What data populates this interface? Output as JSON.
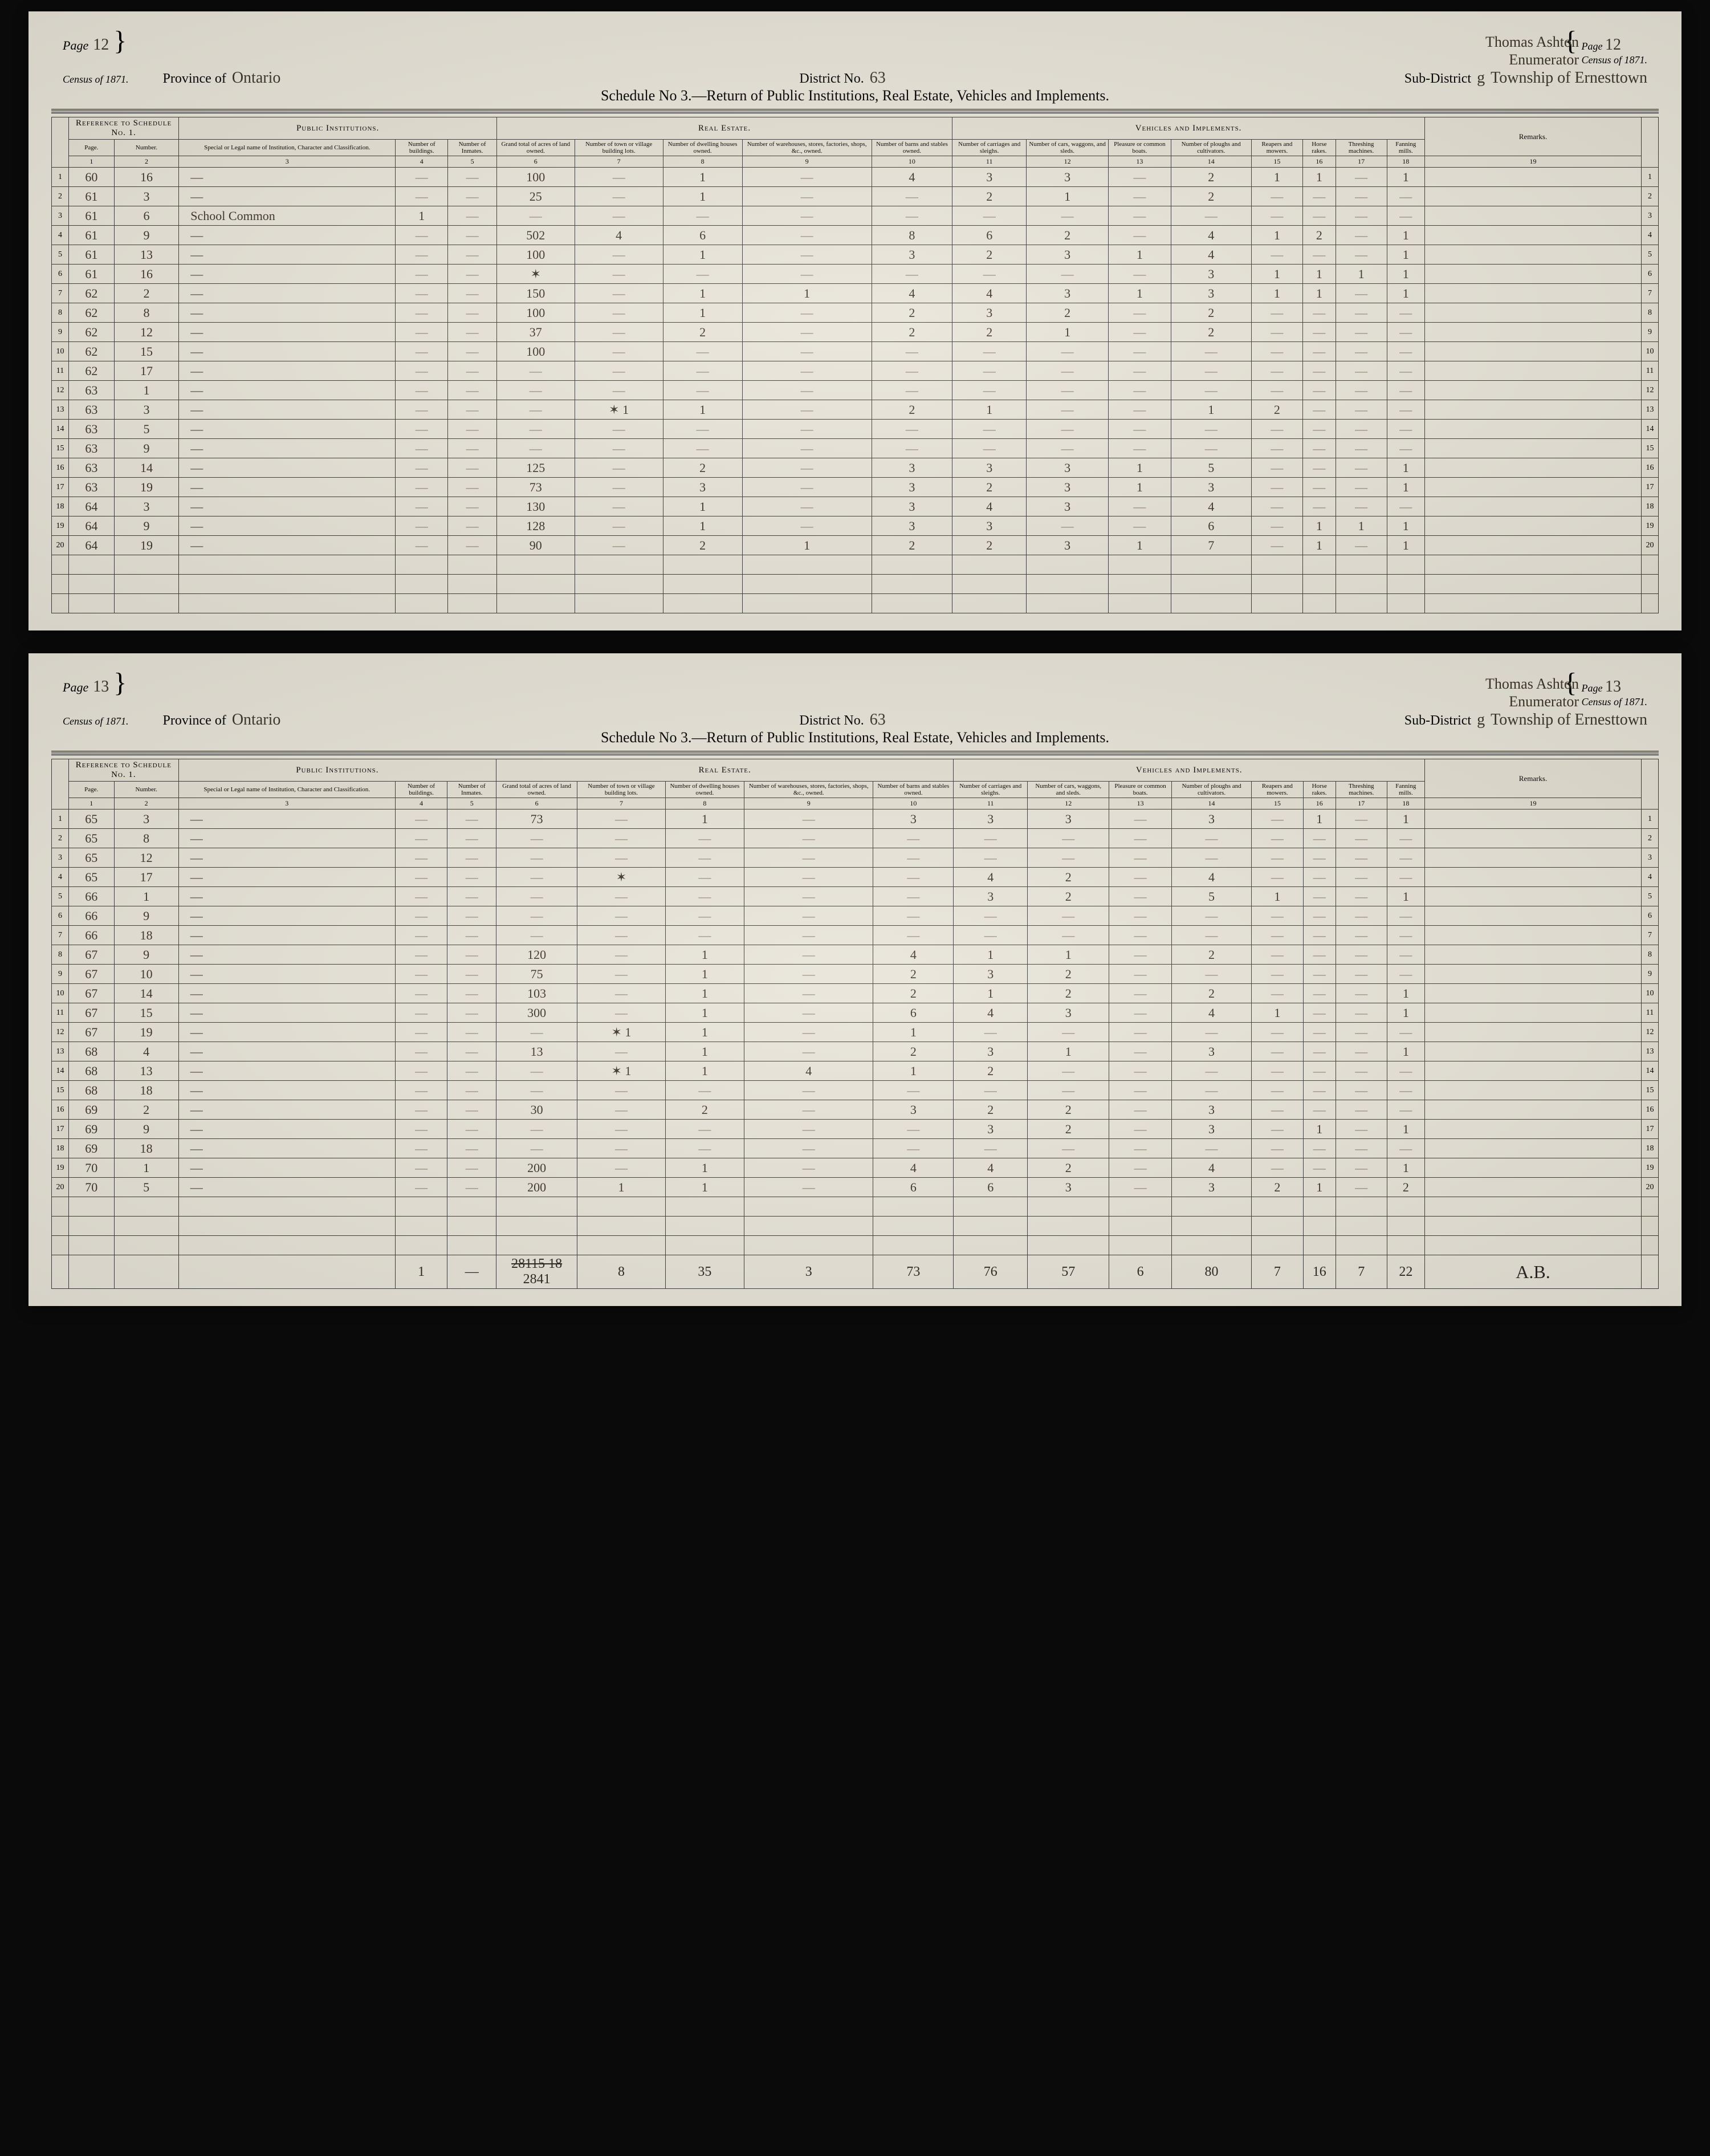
{
  "form": {
    "province_label": "Province of",
    "district_label": "District No.",
    "subdistrict_label": "Sub-District",
    "census_label": "Census of 1871.",
    "page_label": "Page",
    "schedule_title": "Schedule No 3.—Return of Public Institutions, Real Estate, Vehicles and Implements.",
    "enumerator_label": "Enumerator",
    "sections": {
      "ref": "Reference to Schedule No. 1.",
      "pub": "Public Institutions.",
      "real": "Real Estate.",
      "veh": "Vehicles and Implements.",
      "rem": "Remarks."
    },
    "columns": {
      "c1": "Page.",
      "c2": "Number.",
      "c3": "Special or Legal name of Institution, Character and Classification.",
      "c4": "Number of buildings.",
      "c5": "Number of Inmates.",
      "c6": "Grand total of acres of land owned.",
      "c7": "Number of town or village building lots.",
      "c8": "Number of dwelling houses owned.",
      "c9": "Number of warehouses, stores, factories, shops, &c., owned.",
      "c10": "Number of barns and stables owned.",
      "c11": "Number of carriages and sleighs.",
      "c12": "Number of cars, waggons, and sleds.",
      "c13": "Pleasure or common boats.",
      "c14": "Number of ploughs and cultivators.",
      "c15": "Reapers and mowers.",
      "c16": "Horse rakes.",
      "c17": "Threshing machines.",
      "c18": "Fanning mills.",
      "c19": "19"
    }
  },
  "pages": [
    {
      "page_num": "12",
      "province": "Ontario",
      "district": "63",
      "subdistrict_letter": "g",
      "subdistrict_name": "Township of Ernesttown",
      "enumerator": "Thomas Ashton",
      "rows": [
        {
          "n": 1,
          "p": "60",
          "num": "16",
          "inst": "—",
          "c6": "100",
          "c8": "1",
          "c10": "4",
          "c11": "3",
          "c12": "3",
          "c14": "2",
          "c15": "1",
          "c16": "1",
          "c18": "1"
        },
        {
          "n": 2,
          "p": "61",
          "num": "3",
          "inst": "—",
          "c6": "25",
          "c8": "1",
          "c11": "2",
          "c12": "1",
          "c14": "2"
        },
        {
          "n": 3,
          "p": "61",
          "num": "6",
          "inst": "School Common",
          "c4": "1"
        },
        {
          "n": 4,
          "p": "61",
          "num": "9",
          "inst": "—",
          "c6": "502",
          "c7": "4",
          "c8": "6",
          "c10": "8",
          "c11": "6",
          "c12": "2",
          "c14": "4",
          "c15": "1",
          "c16": "2",
          "c18": "1"
        },
        {
          "n": 5,
          "p": "61",
          "num": "13",
          "inst": "—",
          "c6": "100",
          "c8": "1",
          "c10": "3",
          "c11": "2",
          "c12": "3",
          "c13": "1",
          "c14": "4",
          "c18": "1"
        },
        {
          "n": 6,
          "p": "61",
          "num": "16",
          "inst": "—",
          "c6": "✶",
          "c14": "3",
          "c15": "1",
          "c16": "1",
          "c17": "1",
          "c18": "1"
        },
        {
          "n": 7,
          "p": "62",
          "num": "2",
          "inst": "—",
          "c6": "150",
          "c8": "1",
          "c9": "1",
          "c10": "4",
          "c11": "4",
          "c12": "3",
          "c13": "1",
          "c14": "3",
          "c15": "1",
          "c16": "1",
          "c18": "1"
        },
        {
          "n": 8,
          "p": "62",
          "num": "8",
          "inst": "—",
          "c6": "100",
          "c8": "1",
          "c10": "2",
          "c11": "3",
          "c12": "2",
          "c14": "2"
        },
        {
          "n": 9,
          "p": "62",
          "num": "12",
          "inst": "—",
          "c6": "37",
          "c8": "2",
          "c10": "2",
          "c11": "2",
          "c12": "1",
          "c14": "2"
        },
        {
          "n": 10,
          "p": "62",
          "num": "15",
          "inst": "—",
          "c6": "100"
        },
        {
          "n": 11,
          "p": "62",
          "num": "17",
          "inst": "—"
        },
        {
          "n": 12,
          "p": "63",
          "num": "1",
          "inst": "—"
        },
        {
          "n": 13,
          "p": "63",
          "num": "3",
          "inst": "—",
          "c7": "✶ 1",
          "c8": "1",
          "c10": "2",
          "c11": "1",
          "c14": "1",
          "c15": "2"
        },
        {
          "n": 14,
          "p": "63",
          "num": "5",
          "inst": "—"
        },
        {
          "n": 15,
          "p": "63",
          "num": "9",
          "inst": "—"
        },
        {
          "n": 16,
          "p": "63",
          "num": "14",
          "inst": "—",
          "c6": "125",
          "c8": "2",
          "c10": "3",
          "c11": "3",
          "c12": "3",
          "c13": "1",
          "c14": "5",
          "c18": "1"
        },
        {
          "n": 17,
          "p": "63",
          "num": "19",
          "inst": "—",
          "c6": "73",
          "c8": "3",
          "c10": "3",
          "c11": "2",
          "c12": "3",
          "c13": "1",
          "c14": "3",
          "c18": "1"
        },
        {
          "n": 18,
          "p": "64",
          "num": "3",
          "inst": "—",
          "c6": "130",
          "c8": "1",
          "c10": "3",
          "c11": "4",
          "c12": "3",
          "c14": "4"
        },
        {
          "n": 19,
          "p": "64",
          "num": "9",
          "inst": "—",
          "c6": "128",
          "c8": "1",
          "c10": "3",
          "c11": "3",
          "c14": "6",
          "c16": "1",
          "c17": "1",
          "c18": "1"
        },
        {
          "n": 20,
          "p": "64",
          "num": "19",
          "inst": "—",
          "c6": "90",
          "c8": "2",
          "c9": "1",
          "c10": "2",
          "c11": "2",
          "c12": "3",
          "c13": "1",
          "c14": "7",
          "c16": "1",
          "c18": "1"
        }
      ]
    },
    {
      "page_num": "13",
      "province": "Ontario",
      "district": "63",
      "subdistrict_letter": "g",
      "subdistrict_name": "Township of Ernesttown",
      "enumerator": "Thomas Ashton",
      "rows": [
        {
          "n": 1,
          "p": "65",
          "num": "3",
          "inst": "—",
          "c6": "73",
          "c8": "1",
          "c10": "3",
          "c11": "3",
          "c12": "3",
          "c14": "3",
          "c16": "1",
          "c18": "1"
        },
        {
          "n": 2,
          "p": "65",
          "num": "8",
          "inst": "—"
        },
        {
          "n": 3,
          "p": "65",
          "num": "12",
          "inst": "—"
        },
        {
          "n": 4,
          "p": "65",
          "num": "17",
          "inst": "—",
          "c7": "✶",
          "c11": "4",
          "c12": "2",
          "c14": "4"
        },
        {
          "n": 5,
          "p": "66",
          "num": "1",
          "inst": "—",
          "c11": "3",
          "c12": "2",
          "c14": "5",
          "c15": "1",
          "c18": "1"
        },
        {
          "n": 6,
          "p": "66",
          "num": "9",
          "inst": "—"
        },
        {
          "n": 7,
          "p": "66",
          "num": "18",
          "inst": "—"
        },
        {
          "n": 8,
          "p": "67",
          "num": "9",
          "inst": "—",
          "c6": "120",
          "c8": "1",
          "c10": "4",
          "c11": "1",
          "c12": "1",
          "c14": "2"
        },
        {
          "n": 9,
          "p": "67",
          "num": "10",
          "inst": "—",
          "c6": "75",
          "c8": "1",
          "c10": "2",
          "c11": "3",
          "c12": "2"
        },
        {
          "n": 10,
          "p": "67",
          "num": "14",
          "inst": "—",
          "c6": "103",
          "c8": "1",
          "c10": "2",
          "c11": "1",
          "c12": "2",
          "c14": "2",
          "c18": "1"
        },
        {
          "n": 11,
          "p": "67",
          "num": "15",
          "inst": "—",
          "c6": "300",
          "c8": "1",
          "c10": "6",
          "c11": "4",
          "c12": "3",
          "c14": "4",
          "c15": "1",
          "c18": "1"
        },
        {
          "n": 12,
          "p": "67",
          "num": "19",
          "inst": "—",
          "c7": "✶ 1",
          "c8": "1",
          "c10": "1"
        },
        {
          "n": 13,
          "p": "68",
          "num": "4",
          "inst": "—",
          "c6": "13",
          "c8": "1",
          "c10": "2",
          "c11": "3",
          "c12": "1",
          "c14": "3",
          "c18": "1"
        },
        {
          "n": 14,
          "p": "68",
          "num": "13",
          "inst": "—",
          "c7": "✶ 1",
          "c8": "1",
          "c9": "4",
          "c10": "1",
          "c11": "2"
        },
        {
          "n": 15,
          "p": "68",
          "num": "18",
          "inst": "—"
        },
        {
          "n": 16,
          "p": "69",
          "num": "2",
          "inst": "—",
          "c6": "30",
          "c8": "2",
          "c10": "3",
          "c11": "2",
          "c12": "2",
          "c14": "3"
        },
        {
          "n": 17,
          "p": "69",
          "num": "9",
          "inst": "—",
          "c11": "3",
          "c12": "2",
          "c14": "3",
          "c16": "1",
          "c18": "1"
        },
        {
          "n": 18,
          "p": "69",
          "num": "18",
          "inst": "—"
        },
        {
          "n": 19,
          "p": "70",
          "num": "1",
          "inst": "—",
          "c6": "200",
          "c8": "1",
          "c10": "4",
          "c11": "4",
          "c12": "2",
          "c14": "4",
          "c18": "1"
        },
        {
          "n": 20,
          "p": "70",
          "num": "5",
          "inst": "—",
          "c6": "200",
          "c7": "1",
          "c8": "1",
          "c10": "6",
          "c11": "6",
          "c12": "3",
          "c14": "3",
          "c15": "2",
          "c16": "1",
          "c18": "2"
        }
      ],
      "totals_strike": "28115  18",
      "totals": {
        "c4": "1",
        "c6": "2841",
        "c7": "8",
        "c8": "35",
        "c9": "3",
        "c10": "73",
        "c11": "76",
        "c12": "57",
        "c13": "6",
        "c14": "80",
        "c15": "7",
        "c16": "16",
        "c17": "7",
        "c18": "22"
      },
      "signature": "A.B."
    }
  ]
}
